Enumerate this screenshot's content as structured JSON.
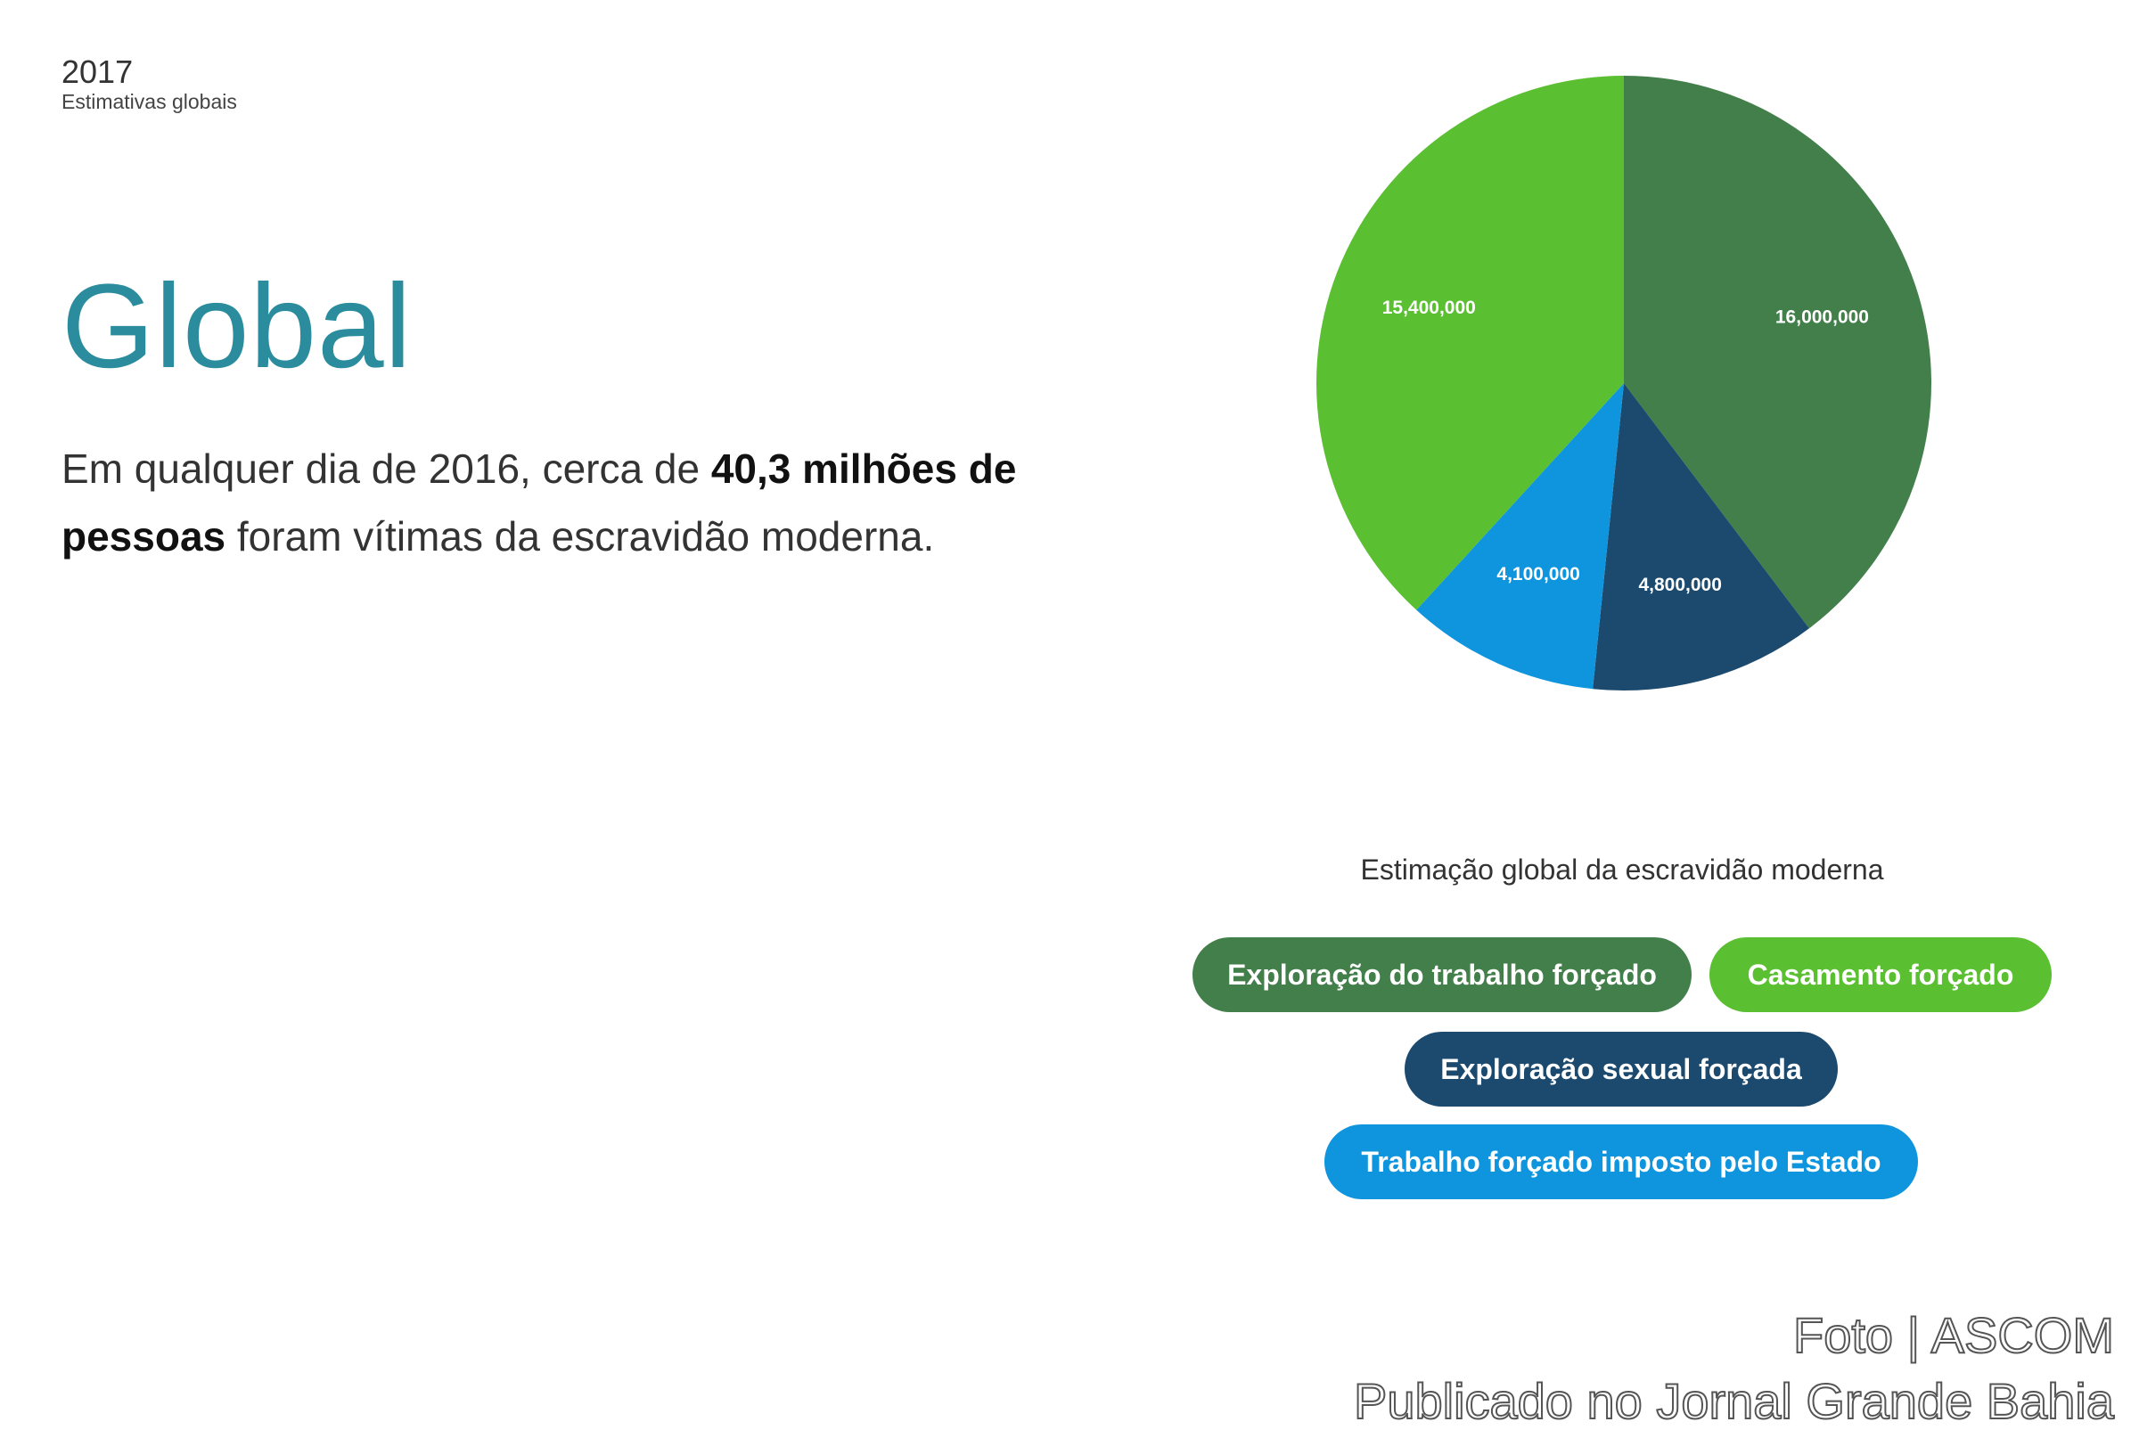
{
  "header": {
    "year": "2017",
    "subtitle": "Estimativas globais",
    "region": "Global"
  },
  "summary": {
    "part1": "Em qualquer dia de 2016, cerca de ",
    "bold1": "40,3 milhões de",
    "bold2": "pessoas",
    "part2": " foram vítimas da escravidão moderna."
  },
  "chart_data": {
    "type": "pie",
    "title": "Estimação global da escravidão moderna",
    "categories": [
      "Exploração do trabalho forçado",
      "Exploração sexual forçada",
      "Trabalho forçado imposto pelo Estado",
      "Casamento forçado"
    ],
    "values": [
      16000000,
      4800000,
      4100000,
      15400000
    ],
    "labels": [
      "16,000,000",
      "4,800,000",
      "4,100,000",
      "15,400,000"
    ],
    "colors": [
      "#427f4a",
      "#1c4a6e",
      "#0e95de",
      "#5abf31"
    ],
    "legend_placement": "bottom"
  },
  "legend": {
    "items": [
      {
        "label": "Exploração do trabalho forçado",
        "color": "#427f4a"
      },
      {
        "label": "Casamento forçado",
        "color": "#5abf31"
      },
      {
        "label": "Exploração sexual forçada",
        "color": "#1c4a6e"
      },
      {
        "label": "Trabalho forçado imposto pelo Estado",
        "color": "#0e95de"
      }
    ]
  },
  "credits": {
    "line1": "Foto | ASCOM",
    "line2": "Publicado no Jornal Grande Bahia"
  }
}
